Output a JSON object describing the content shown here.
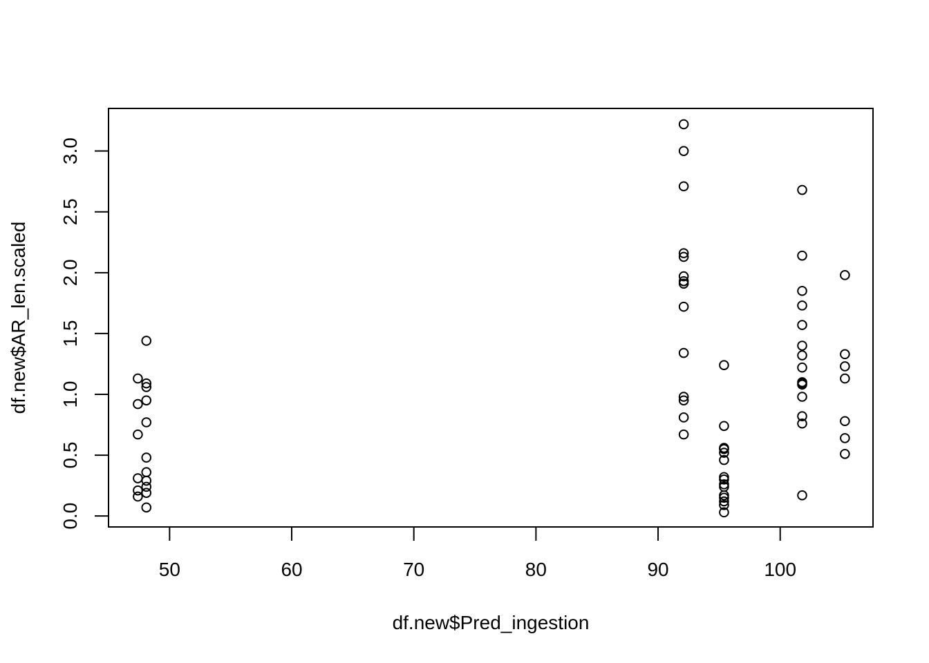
{
  "chart_data": {
    "type": "scatter",
    "title": "",
    "xlabel": "df.new$Pred_ingestion",
    "ylabel": "df.new$AR_len.scaled",
    "xlim": [
      45,
      107.6
    ],
    "ylim": [
      -0.09,
      3.35
    ],
    "x_ticks": [
      50,
      60,
      70,
      80,
      90,
      100
    ],
    "y_ticks": [
      0.0,
      0.5,
      1.0,
      1.5,
      2.0,
      2.5,
      3.0
    ],
    "x_tick_labels": [
      "50",
      "60",
      "70",
      "80",
      "90",
      "100"
    ],
    "y_tick_labels": [
      "0.0",
      "0.5",
      "1.0",
      "1.5",
      "2.0",
      "2.5",
      "3.0"
    ],
    "grid": false,
    "legend": "none",
    "marker": "open-circle",
    "color": "#000000",
    "points": [
      {
        "x": 47.4,
        "y": 1.13
      },
      {
        "x": 47.4,
        "y": 0.92
      },
      {
        "x": 47.4,
        "y": 0.67
      },
      {
        "x": 47.4,
        "y": 0.31
      },
      {
        "x": 47.4,
        "y": 0.21
      },
      {
        "x": 47.4,
        "y": 0.16
      },
      {
        "x": 48.1,
        "y": 1.44
      },
      {
        "x": 48.1,
        "y": 1.09
      },
      {
        "x": 48.1,
        "y": 1.06
      },
      {
        "x": 48.1,
        "y": 0.95
      },
      {
        "x": 48.1,
        "y": 0.77
      },
      {
        "x": 48.1,
        "y": 0.48
      },
      {
        "x": 48.1,
        "y": 0.36
      },
      {
        "x": 48.1,
        "y": 0.29
      },
      {
        "x": 48.1,
        "y": 0.24
      },
      {
        "x": 48.1,
        "y": 0.19
      },
      {
        "x": 48.1,
        "y": 0.07
      },
      {
        "x": 92.1,
        "y": 3.22
      },
      {
        "x": 92.1,
        "y": 3.0
      },
      {
        "x": 92.1,
        "y": 2.71
      },
      {
        "x": 92.1,
        "y": 2.16
      },
      {
        "x": 92.1,
        "y": 2.13
      },
      {
        "x": 92.1,
        "y": 1.97
      },
      {
        "x": 92.1,
        "y": 1.93
      },
      {
        "x": 92.1,
        "y": 1.91
      },
      {
        "x": 92.1,
        "y": 1.72
      },
      {
        "x": 92.1,
        "y": 1.34
      },
      {
        "x": 92.1,
        "y": 0.98
      },
      {
        "x": 92.1,
        "y": 0.95
      },
      {
        "x": 92.1,
        "y": 0.81
      },
      {
        "x": 92.1,
        "y": 0.67
      },
      {
        "x": 95.4,
        "y": 1.24
      },
      {
        "x": 95.4,
        "y": 0.74
      },
      {
        "x": 95.4,
        "y": 0.56
      },
      {
        "x": 95.4,
        "y": 0.55
      },
      {
        "x": 95.4,
        "y": 0.52
      },
      {
        "x": 95.4,
        "y": 0.46
      },
      {
        "x": 95.4,
        "y": 0.32
      },
      {
        "x": 95.4,
        "y": 0.3
      },
      {
        "x": 95.4,
        "y": 0.26
      },
      {
        "x": 95.4,
        "y": 0.24
      },
      {
        "x": 95.4,
        "y": 0.17
      },
      {
        "x": 95.4,
        "y": 0.15
      },
      {
        "x": 95.4,
        "y": 0.12
      },
      {
        "x": 95.4,
        "y": 0.09
      },
      {
        "x": 95.4,
        "y": 0.03
      },
      {
        "x": 101.8,
        "y": 2.68
      },
      {
        "x": 101.8,
        "y": 2.14
      },
      {
        "x": 101.8,
        "y": 1.85
      },
      {
        "x": 101.8,
        "y": 1.73
      },
      {
        "x": 101.8,
        "y": 1.57
      },
      {
        "x": 101.8,
        "y": 1.4
      },
      {
        "x": 101.8,
        "y": 1.32
      },
      {
        "x": 101.8,
        "y": 1.22
      },
      {
        "x": 101.8,
        "y": 1.1
      },
      {
        "x": 101.8,
        "y": 1.09
      },
      {
        "x": 101.8,
        "y": 1.08
      },
      {
        "x": 101.8,
        "y": 0.98
      },
      {
        "x": 101.8,
        "y": 0.82
      },
      {
        "x": 101.8,
        "y": 0.76
      },
      {
        "x": 101.8,
        "y": 0.17
      },
      {
        "x": 105.3,
        "y": 1.98
      },
      {
        "x": 105.3,
        "y": 1.33
      },
      {
        "x": 105.3,
        "y": 1.23
      },
      {
        "x": 105.3,
        "y": 1.13
      },
      {
        "x": 105.3,
        "y": 0.78
      },
      {
        "x": 105.3,
        "y": 0.64
      },
      {
        "x": 105.3,
        "y": 0.51
      }
    ]
  }
}
